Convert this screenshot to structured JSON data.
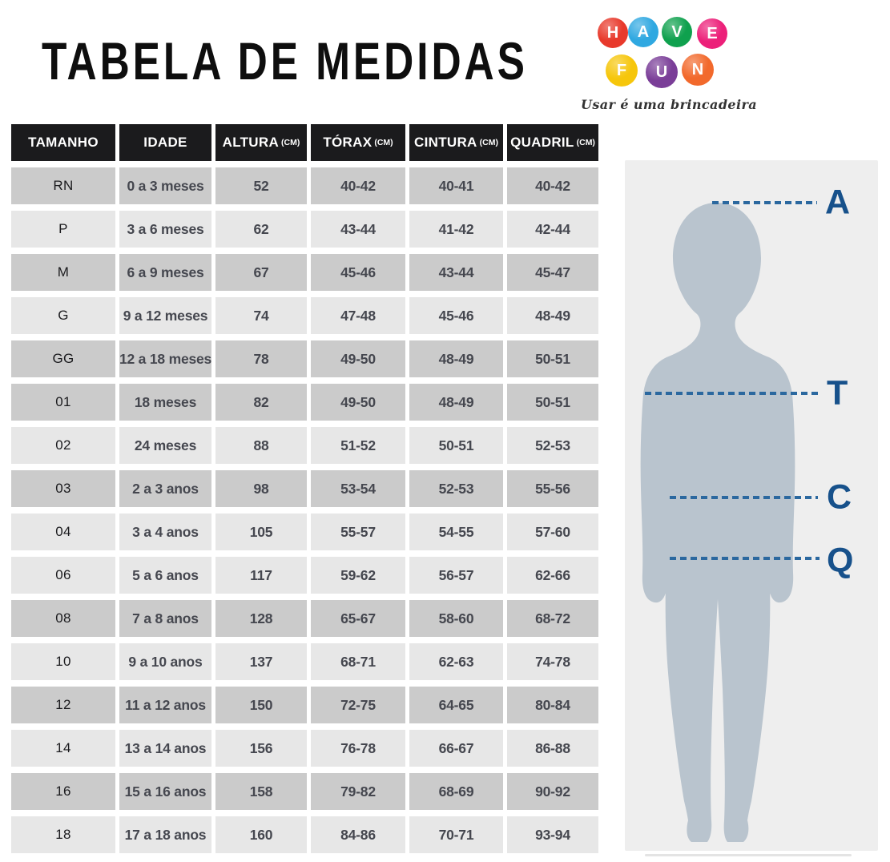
{
  "title": "TABELA DE MEDIDAS",
  "logo": {
    "tagline": "Usar é uma brincadeira",
    "letters": [
      {
        "char": "H",
        "color": "#e8392b"
      },
      {
        "char": "A",
        "color": "#2fa8e1"
      },
      {
        "char": "V",
        "color": "#0fa14e"
      },
      {
        "char": "E",
        "color": "#ec2079"
      },
      {
        "char": "F",
        "color": "#f6c60b"
      },
      {
        "char": "U",
        "color": "#7a3e98"
      },
      {
        "char": "N",
        "color": "#f2692c"
      }
    ]
  },
  "table": {
    "columns": [
      {
        "key": "tamanho",
        "label": "TAMANHO",
        "unit": ""
      },
      {
        "key": "idade",
        "label": "IDADE",
        "unit": ""
      },
      {
        "key": "altura",
        "label": "ALTURA",
        "unit": "(CM)"
      },
      {
        "key": "torax",
        "label": "TÓRAX",
        "unit": "(CM)"
      },
      {
        "key": "cintura",
        "label": "CINTURA",
        "unit": "(CM)"
      },
      {
        "key": "quadril",
        "label": "QUADRIL",
        "unit": "(CM)"
      }
    ],
    "rows": [
      {
        "tamanho": "RN",
        "idade": "0 a 3 meses",
        "altura": "52",
        "torax": "40-42",
        "cintura": "40-41",
        "quadril": "40-42",
        "shade": "dark"
      },
      {
        "tamanho": "P",
        "idade": "3 a 6 meses",
        "altura": "62",
        "torax": "43-44",
        "cintura": "41-42",
        "quadril": "42-44",
        "shade": "light"
      },
      {
        "tamanho": "M",
        "idade": "6 a 9 meses",
        "altura": "67",
        "torax": "45-46",
        "cintura": "43-44",
        "quadril": "45-47",
        "shade": "dark"
      },
      {
        "tamanho": "G",
        "idade": "9 a 12 meses",
        "altura": "74",
        "torax": "47-48",
        "cintura": "45-46",
        "quadril": "48-49",
        "shade": "light"
      },
      {
        "tamanho": "GG",
        "idade": "12 a 18 meses",
        "altura": "78",
        "torax": "49-50",
        "cintura": "48-49",
        "quadril": "50-51",
        "shade": "dark"
      },
      {
        "tamanho": "01",
        "idade": "18 meses",
        "altura": "82",
        "torax": "49-50",
        "cintura": "48-49",
        "quadril": "50-51",
        "shade": "dark"
      },
      {
        "tamanho": "02",
        "idade": "24 meses",
        "altura": "88",
        "torax": "51-52",
        "cintura": "50-51",
        "quadril": "52-53",
        "shade": "light"
      },
      {
        "tamanho": "03",
        "idade": "2 a 3 anos",
        "altura": "98",
        "torax": "53-54",
        "cintura": "52-53",
        "quadril": "55-56",
        "shade": "dark"
      },
      {
        "tamanho": "04",
        "idade": "3 a 4 anos",
        "altura": "105",
        "torax": "55-57",
        "cintura": "54-55",
        "quadril": "57-60",
        "shade": "light"
      },
      {
        "tamanho": "06",
        "idade": "5 a 6 anos",
        "altura": "117",
        "torax": "59-62",
        "cintura": "56-57",
        "quadril": "62-66",
        "shade": "light"
      },
      {
        "tamanho": "08",
        "idade": "7 a 8 anos",
        "altura": "128",
        "torax": "65-67",
        "cintura": "58-60",
        "quadril": "68-72",
        "shade": "dark"
      },
      {
        "tamanho": "10",
        "idade": "9 a 10 anos",
        "altura": "137",
        "torax": "68-71",
        "cintura": "62-63",
        "quadril": "74-78",
        "shade": "light"
      },
      {
        "tamanho": "12",
        "idade": "11 a 12 anos",
        "altura": "150",
        "torax": "72-75",
        "cintura": "64-65",
        "quadril": "80-84",
        "shade": "dark"
      },
      {
        "tamanho": "14",
        "idade": "13 a 14 anos",
        "altura": "156",
        "torax": "76-78",
        "cintura": "66-67",
        "quadril": "86-88",
        "shade": "light"
      },
      {
        "tamanho": "16",
        "idade": "15 a 16 anos",
        "altura": "158",
        "torax": "79-82",
        "cintura": "68-69",
        "quadril": "90-92",
        "shade": "dark"
      },
      {
        "tamanho": "18",
        "idade": "17 a 18 anos",
        "altura": "160",
        "torax": "84-86",
        "cintura": "70-71",
        "quadril": "93-94",
        "shade": "light"
      }
    ]
  },
  "figure": {
    "measure_labels": [
      "A",
      "T",
      "C",
      "Q"
    ],
    "line_color": "#2b689f",
    "label_color": "#17518b",
    "silhouette_color": "#b9c4ce",
    "panel_color": "#eeeeee"
  },
  "colors": {
    "header_bg": "#1b1b1d",
    "row_dark": "#cbcbcb",
    "row_light": "#e7e7e7",
    "cell_text": "#45474f",
    "title_text": "#0e0e0e"
  }
}
